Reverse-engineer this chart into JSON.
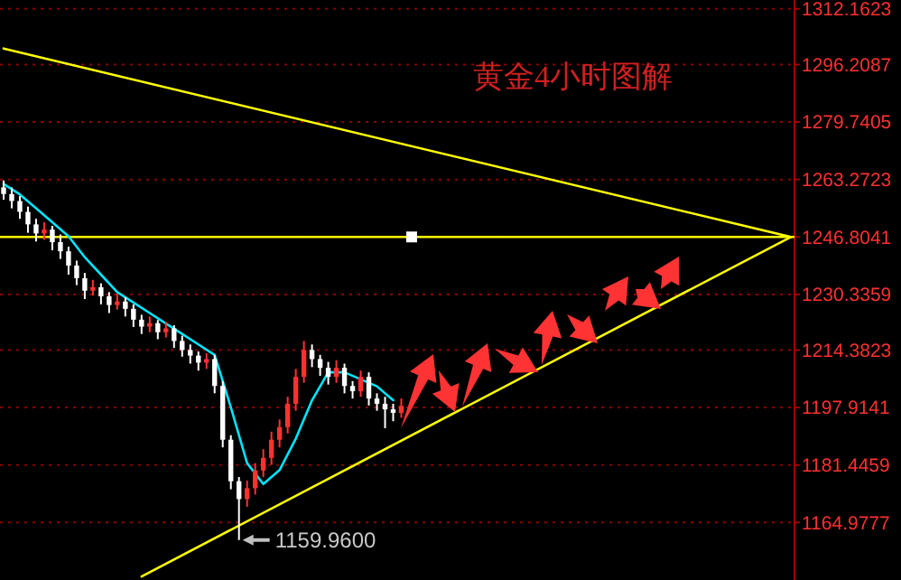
{
  "chart_data": {
    "type": "candlestick",
    "title": "黄金4小时图解",
    "categories": [
      null,
      null,
      null,
      null,
      null,
      null,
      null,
      null,
      null,
      null,
      null,
      null,
      null,
      null,
      null,
      null,
      null,
      null,
      null,
      null,
      null,
      null,
      null,
      null,
      null,
      null,
      null,
      null,
      null,
      null,
      null,
      null,
      null,
      null,
      null,
      null,
      null,
      null,
      null,
      null,
      null,
      null,
      null,
      null,
      null,
      null,
      null,
      null,
      null,
      null,
      null,
      null,
      null,
      null,
      null,
      null,
      null,
      null,
      null,
      null,
      null,
      null,
      null,
      null,
      null,
      null,
      null,
      null,
      null,
      null,
      null,
      null,
      null,
      null,
      null,
      null,
      null,
      null,
      null,
      null,
      null,
      null,
      null,
      null,
      null,
      null,
      null,
      null,
      null,
      null,
      null,
      null,
      null,
      null,
      null,
      null,
      null,
      null
    ],
    "ohlc": [
      [
        1261.0,
        1263.0,
        1257.5,
        1259.1
      ],
      [
        1259.1,
        1261.0,
        1255.0,
        1257.1
      ],
      [
        1257.1,
        1258.5,
        1252.0,
        1254.0
      ],
      [
        1254.0,
        1255.5,
        1248.0,
        1250.4
      ],
      [
        1250.4,
        1252.0,
        1245.5,
        1247.8
      ],
      [
        1247.8,
        1251.0,
        1246.0,
        1248.9
      ],
      [
        1248.9,
        1250.0,
        1243.0,
        1245.3
      ],
      [
        1245.3,
        1247.5,
        1240.5,
        1242.7
      ],
      [
        1242.7,
        1244.0,
        1236.0,
        1238.6
      ],
      [
        1238.6,
        1240.0,
        1233.0,
        1235.0
      ],
      [
        1235.0,
        1236.5,
        1229.0,
        1231.4
      ],
      [
        1231.4,
        1234.5,
        1230.0,
        1232.4
      ],
      [
        1232.4,
        1233.5,
        1227.5,
        1229.8
      ],
      [
        1229.8,
        1231.0,
        1225.0,
        1227.3
      ],
      [
        1227.3,
        1230.5,
        1226.0,
        1228.3
      ],
      [
        1228.3,
        1229.5,
        1224.0,
        1226.2
      ],
      [
        1226.2,
        1227.5,
        1221.0,
        1223.1
      ],
      [
        1223.1,
        1224.5,
        1219.0,
        1221.1
      ],
      [
        1221.1,
        1224.0,
        1219.5,
        1222.1
      ],
      [
        1222.1,
        1223.0,
        1217.5,
        1219.5
      ],
      [
        1219.5,
        1222.5,
        1218.0,
        1220.6
      ],
      [
        1220.6,
        1221.5,
        1215.0,
        1217.0
      ],
      [
        1217.0,
        1218.5,
        1212.5,
        1214.4
      ],
      [
        1214.4,
        1216.0,
        1210.5,
        1212.8
      ],
      [
        1212.8,
        1214.0,
        1208.5,
        1210.8
      ],
      [
        1210.8,
        1213.5,
        1209.0,
        1211.8
      ],
      [
        1211.8,
        1213.0,
        1202.0,
        1204.1
      ],
      [
        1204.1,
        1205.5,
        1186.5,
        1188.7
      ],
      [
        1188.7,
        1190.0,
        1174.5,
        1176.8
      ],
      [
        1176.8,
        1178.0,
        1159.96,
        1171.7
      ],
      [
        1171.7,
        1177.0,
        1169.5,
        1174.8
      ],
      [
        1174.8,
        1182.0,
        1173.0,
        1179.9
      ],
      [
        1179.9,
        1186.0,
        1178.0,
        1183.5
      ],
      [
        1183.5,
        1191.0,
        1181.5,
        1188.7
      ],
      [
        1188.7,
        1194.5,
        1186.5,
        1192.3
      ],
      [
        1192.3,
        1201.0,
        1190.5,
        1199.0
      ],
      [
        1199.0,
        1209.0,
        1197.0,
        1206.7
      ],
      [
        1206.7,
        1217.0,
        1205.0,
        1214.4
      ],
      [
        1214.4,
        1216.0,
        1209.5,
        1211.8
      ],
      [
        1211.8,
        1213.0,
        1207.0,
        1209.3
      ],
      [
        1209.3,
        1211.0,
        1204.5,
        1206.7
      ],
      [
        1206.7,
        1211.5,
        1205.0,
        1209.3
      ],
      [
        1209.3,
        1210.5,
        1202.0,
        1204.1
      ],
      [
        1204.1,
        1205.5,
        1200.5,
        1202.6
      ],
      [
        1202.6,
        1208.5,
        1201.0,
        1206.7
      ],
      [
        1206.7,
        1208.0,
        1198.5,
        1200.5
      ],
      [
        1200.5,
        1202.0,
        1197.0,
        1199.0
      ],
      [
        1199.0,
        1201.0,
        1192.0,
        1197.4
      ],
      [
        1197.4,
        1199.0,
        1194.0,
        1196.4
      ],
      [
        1196.4,
        1200.5,
        1195.0,
        1198.4
      ],
      null,
      null,
      null,
      null,
      null,
      null,
      null,
      null,
      null,
      null,
      null,
      null,
      null,
      null,
      null,
      null,
      null,
      null,
      null,
      null,
      null,
      null,
      null,
      null,
      null,
      null,
      null,
      null,
      null,
      null,
      null,
      null,
      null,
      null,
      null,
      null,
      null,
      null,
      null,
      null,
      null,
      null,
      null,
      null,
      null,
      null,
      null,
      null
    ],
    "colors": [
      "#ffffff",
      "#ffffff",
      "#ffffff",
      "#ffffff",
      "#ffffff",
      "#ff3030",
      "#ffffff",
      "#ffffff",
      "#ffffff",
      "#ffffff",
      "#ffffff",
      "#ff3030",
      "#ffffff",
      "#ffffff",
      "#ff3030",
      "#ffffff",
      "#ffffff",
      "#ffffff",
      "#ff3030",
      "#ffffff",
      "#ff3030",
      "#ffffff",
      "#ffffff",
      "#ffffff",
      "#ffffff",
      "#ff3030",
      "#ffffff",
      "#ffffff",
      "#ffffff",
      "#ffffff",
      "#ff3030",
      "#ff3030",
      "#ff3030",
      "#ff3030",
      "#ff3030",
      "#ff3030",
      "#ff3030",
      "#ff3030",
      "#ffffff",
      "#ffffff",
      "#ffffff",
      "#ff3030",
      "#ffffff",
      "#ffffff",
      "#ff3030",
      "#ffffff",
      "#ffffff",
      "#ffffff",
      "#ffffff",
      "#ff3030",
      null,
      null,
      null,
      null,
      null,
      null,
      null,
      null,
      null,
      null,
      null,
      null,
      null,
      null,
      null,
      null,
      null,
      null,
      null,
      null,
      null,
      null,
      null,
      null,
      null,
      null,
      null,
      null,
      null,
      null,
      null,
      null,
      null,
      null,
      null,
      null,
      null,
      null,
      null,
      null,
      null,
      null,
      null,
      null,
      null,
      null,
      null,
      null
    ],
    "series": [
      {
        "type": "line",
        "color": "#00e5ff",
        "values": [
          1262,
          null,
          1259,
          null,
          1255,
          null,
          1251,
          null,
          1247,
          null,
          1241,
          null,
          1236,
          null,
          1231,
          null,
          1228,
          null,
          1225,
          null,
          1222,
          null,
          1219,
          null,
          1216,
          null,
          1213,
          null,
          1198,
          null,
          1182,
          null,
          1176,
          null,
          1180,
          null,
          1189,
          null,
          1200,
          null,
          1208,
          null,
          1208,
          null,
          1206,
          null,
          1204,
          null,
          1200,
          null,
          null,
          null,
          null,
          null,
          null,
          null,
          null,
          null,
          null,
          null,
          null,
          null,
          null,
          null,
          null,
          null,
          null,
          null,
          null,
          null,
          null,
          null,
          null,
          null,
          null,
          null,
          null,
          null,
          null,
          null,
          null,
          null,
          null,
          null,
          null,
          null,
          null,
          null,
          null,
          null,
          null,
          null,
          null,
          null,
          null,
          null,
          null,
          null
        ]
      },
      {
        "type": "line",
        "color": "#ffff00",
        "values": [
          1300.8,
          null,
          null,
          null,
          null,
          null,
          null,
          null,
          null,
          null,
          null,
          null,
          null,
          null,
          null,
          null,
          null,
          null,
          null,
          null,
          null,
          null,
          null,
          null,
          null,
          null,
          null,
          null,
          null,
          null,
          null,
          null,
          null,
          null,
          null,
          null,
          null,
          null,
          null,
          null,
          null,
          null,
          null,
          null,
          null,
          null,
          null,
          null,
          null,
          null,
          null,
          null,
          null,
          null,
          null,
          null,
          null,
          null,
          null,
          null,
          null,
          null,
          null,
          null,
          null,
          null,
          null,
          null,
          null,
          null,
          null,
          null,
          null,
          null,
          null,
          null,
          null,
          null,
          null,
          null,
          null,
          null,
          null,
          null,
          null,
          null,
          null,
          null,
          null,
          null,
          null,
          null,
          null,
          null,
          null,
          null,
          null,
          1246.8
        ]
      },
      {
        "type": "line",
        "color": "#ffff00",
        "values": [
          null,
          null,
          null,
          null,
          null,
          null,
          null,
          null,
          null,
          null,
          null,
          null,
          null,
          null,
          null,
          null,
          null,
          1149.5,
          null,
          null,
          null,
          null,
          null,
          null,
          null,
          null,
          null,
          null,
          null,
          null,
          null,
          null,
          null,
          null,
          null,
          null,
          null,
          null,
          null,
          null,
          null,
          null,
          null,
          null,
          null,
          null,
          null,
          null,
          null,
          null,
          null,
          null,
          null,
          null,
          null,
          null,
          null,
          null,
          null,
          null,
          null,
          null,
          null,
          null,
          null,
          null,
          null,
          null,
          null,
          null,
          null,
          null,
          null,
          null,
          null,
          null,
          null,
          null,
          null,
          null,
          null,
          null,
          null,
          null,
          null,
          null,
          null,
          null,
          null,
          null,
          null,
          null,
          null,
          null,
          null,
          null,
          null,
          1246.8
        ]
      }
    ],
    "ref_lines": [
      {
        "axis": "y",
        "value": 1246.8041,
        "color": "#ffff00"
      }
    ],
    "annotations": [
      "1159.9600"
    ],
    "ylim": [
      1148.5,
      1314.7
    ],
    "yticks": [
      1164.9777,
      1181.4459,
      1197.9141,
      1214.3823,
      1230.3359,
      1246.8041,
      1263.2723,
      1279.7405,
      1296.2087,
      1312.1623
    ],
    "grid": "y"
  }
}
